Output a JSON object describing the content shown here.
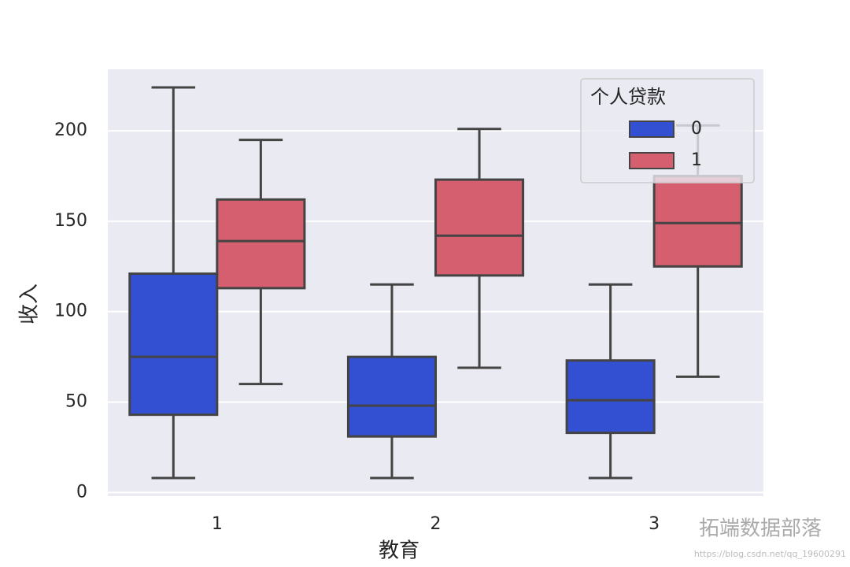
{
  "chart_data": {
    "type": "box",
    "xlabel": "教育",
    "ylabel": "收入",
    "categories": [
      "1",
      "2",
      "3"
    ],
    "ylim": [
      -2,
      234
    ],
    "yticks": [
      0,
      50,
      100,
      150,
      200
    ],
    "grid": true,
    "legend_title": "个人贷款",
    "legend_position": "upper right",
    "series": [
      {
        "name": "0",
        "color": "#3350d3",
        "min": [
          8,
          8,
          8
        ],
        "q1": [
          43,
          31,
          33
        ],
        "median": [
          75,
          48,
          51
        ],
        "q3": [
          121,
          75,
          73
        ],
        "max": [
          224,
          115,
          115
        ]
      },
      {
        "name": "1",
        "color": "#d65f6f",
        "min": [
          60,
          69,
          64
        ],
        "q1": [
          113,
          120,
          125
        ],
        "median": [
          139,
          142,
          149
        ],
        "q3": [
          162,
          173,
          175
        ],
        "max": [
          195,
          201,
          203
        ]
      }
    ]
  },
  "watermark": {
    "text": "拓端数据部落",
    "url": "https://blog.csdn.net/qq_19600291"
  }
}
